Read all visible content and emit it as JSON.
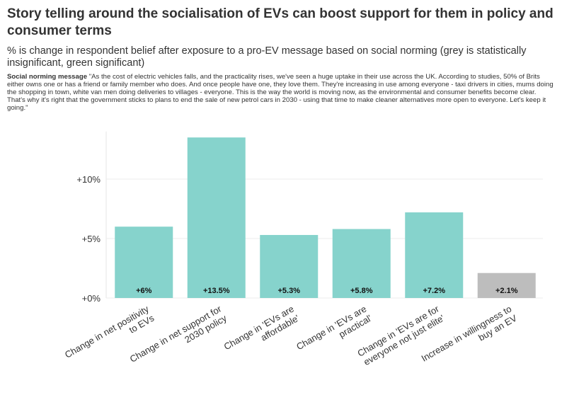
{
  "chart_data": {
    "type": "bar",
    "title": "Story telling around the socialisation of EVs can boost support for them in policy and consumer terms",
    "subtitle": "% is change in respondent belief after exposure to a pro-EV message based on social norming (grey is statistically insignificant, green significant)",
    "note_label": "Social norming message",
    "note": "\"As the cost of electric vehicles falls, and the practicality rises, we've seen a huge uptake in their use across the UK. According to studies, 50% of Brits either owns one or has a friend or family member who does. And once people have one, they love them. They're increasing in use among everyone - taxi drivers in cities, mums doing the shopping in town, white van men doing deliveries to villages - everyone. This is the way the world is moving now, as the environmental and consumer benefits become clear. That's why it's right that the government sticks to plans to end the sale of new petrol cars in 2030 - using that time to make cleaner alternatives more open to everyone. Let's keep it going.\"",
    "categories": [
      "Change in net positivity to EVs",
      "Change in net support for 2030 policy",
      "Change in 'EVs are affordable'",
      "Change in 'EVs are practical'",
      "Change in 'EVs are for everyone not just elite'",
      "Increase in willingness to buy an EV"
    ],
    "values": [
      6,
      13.5,
      5.3,
      5.8,
      7.2,
      2.1
    ],
    "value_labels": [
      "+6%",
      "+13.5%",
      "+5.3%",
      "+5.8%",
      "+7.2%",
      "+2.1%"
    ],
    "colors": [
      "#86d3cc",
      "#86d3cc",
      "#86d3cc",
      "#86d3cc",
      "#86d3cc",
      "#bdbdbd"
    ],
    "ylim": [
      0,
      14
    ],
    "yticks": [
      {
        "value": 0,
        "label": "+0%"
      },
      {
        "value": 5,
        "label": "+5%"
      },
      {
        "value": 10,
        "label": "+10%"
      }
    ],
    "grid": true
  }
}
